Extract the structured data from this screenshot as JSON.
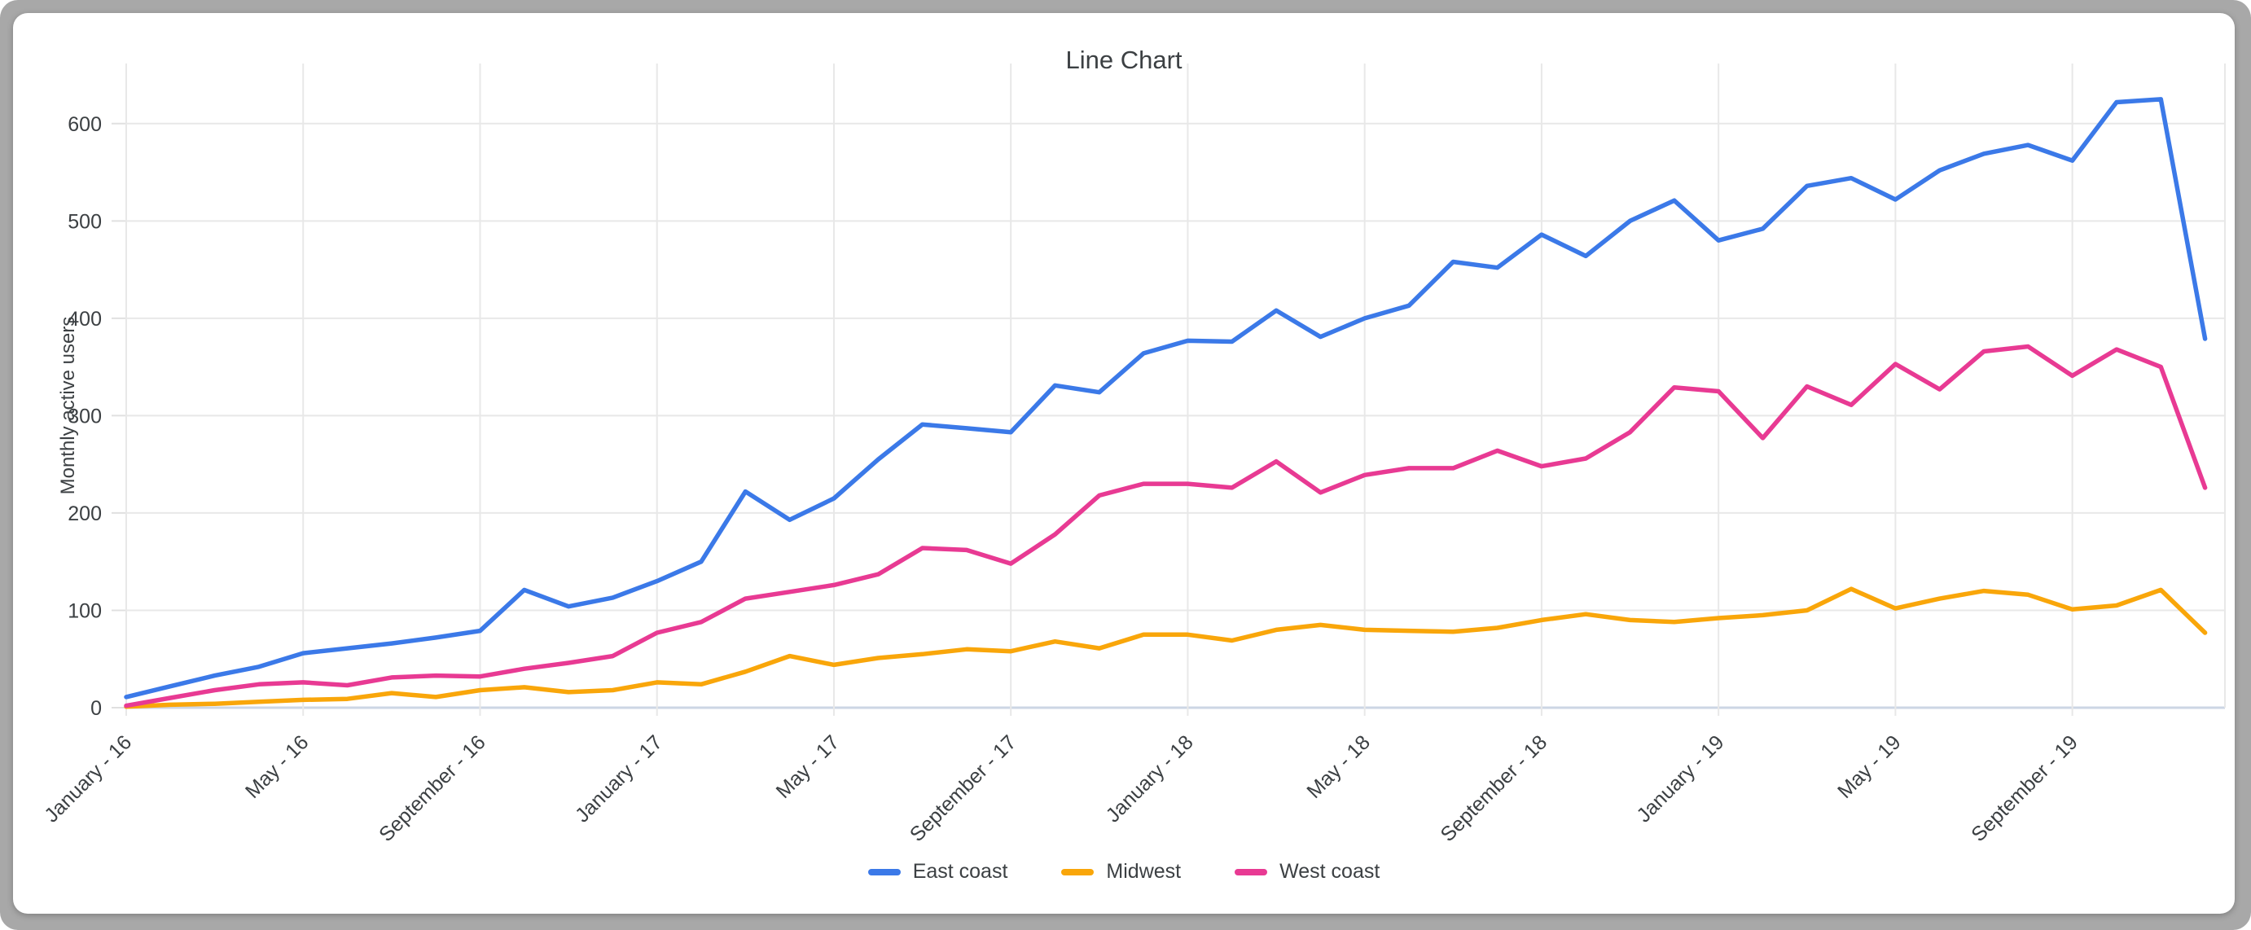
{
  "window": {
    "frame_color": "#a8a8a8",
    "card_color": "#ffffff"
  },
  "chart_data": {
    "type": "line",
    "title": "Line Chart",
    "xlabel": "",
    "ylabel": "Monthly active users",
    "ylim": [
      0,
      645
    ],
    "x_domain_months": 47.45,
    "grid": true,
    "legend_position": "bottom",
    "y_ticks": [
      0,
      100,
      200,
      300,
      400,
      500,
      600
    ],
    "x_ticks": [
      {
        "m": 0,
        "label": "January - 16"
      },
      {
        "m": 4,
        "label": "May - 16"
      },
      {
        "m": 8,
        "label": "September - 16"
      },
      {
        "m": 12,
        "label": "January - 17"
      },
      {
        "m": 16,
        "label": "May - 17"
      },
      {
        "m": 20,
        "label": "September - 17"
      },
      {
        "m": 24,
        "label": "January - 18"
      },
      {
        "m": 28,
        "label": "May - 18"
      },
      {
        "m": 32,
        "label": "September - 18"
      },
      {
        "m": 36,
        "label": "January - 19"
      },
      {
        "m": 40,
        "label": "May - 19"
      },
      {
        "m": 44,
        "label": "September - 19"
      }
    ],
    "series": [
      {
        "name": "East coast",
        "color": "#3b79e8",
        "values": [
          11,
          22,
          33,
          42,
          56,
          61,
          66,
          72,
          79,
          121,
          104,
          113,
          130,
          150,
          222,
          193,
          215,
          255,
          291,
          287,
          283,
          331,
          324,
          364,
          377,
          376,
          408,
          381,
          400,
          413,
          458,
          452,
          486,
          464,
          500,
          521,
          480,
          492,
          536,
          544,
          522,
          552,
          569,
          578,
          562,
          622,
          625,
          379
        ]
      },
      {
        "name": "Midwest",
        "color": "#f9a60a",
        "values": [
          1,
          3,
          4,
          6,
          8,
          9,
          15,
          11,
          18,
          21,
          16,
          18,
          26,
          24,
          37,
          53,
          44,
          51,
          55,
          60,
          58,
          68,
          61,
          75,
          75,
          69,
          80,
          85,
          80,
          79,
          78,
          82,
          90,
          96,
          90,
          88,
          92,
          95,
          100,
          122,
          102,
          112,
          120,
          116,
          101,
          105,
          121,
          77
        ]
      },
      {
        "name": "West coast",
        "color": "#e83a93",
        "values": [
          2,
          10,
          18,
          24,
          26,
          23,
          31,
          33,
          32,
          40,
          46,
          53,
          77,
          88,
          112,
          119,
          126,
          137,
          164,
          162,
          148,
          178,
          218,
          230,
          230,
          226,
          253,
          221,
          239,
          246,
          246,
          264,
          248,
          256,
          283,
          329,
          325,
          277,
          330,
          311,
          353,
          327,
          366,
          371,
          341,
          368,
          350,
          226
        ]
      }
    ],
    "style": {
      "gridline_color": "#e8e8e8",
      "baseline_color": "#ccd6e4",
      "tick_label_color": "#3c4043",
      "line_width": 5.5
    }
  }
}
